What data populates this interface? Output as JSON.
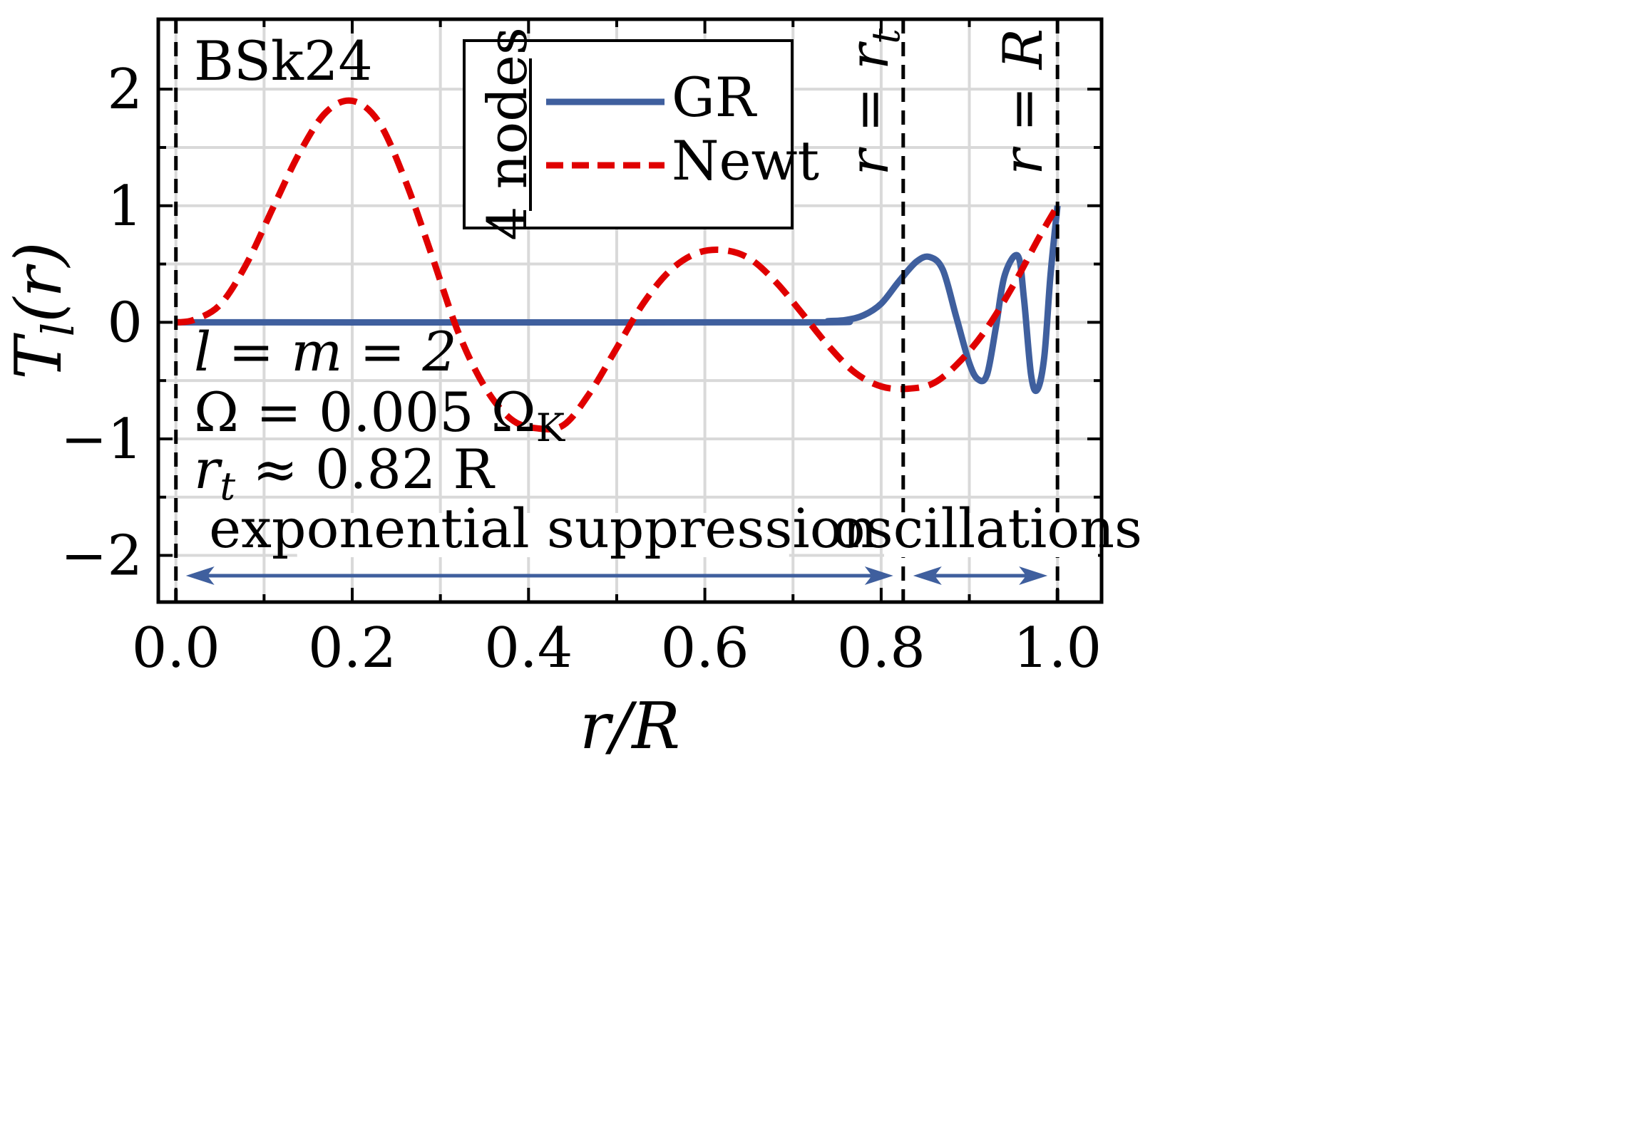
{
  "chart_data": {
    "type": "line",
    "xlabel": "r/R",
    "ylabel": "T_l(r)",
    "xlim": [
      -0.02,
      1.05
    ],
    "ylim": [
      -2.4,
      2.6
    ],
    "xticks": [
      {
        "value": 0.0,
        "label": "0.0"
      },
      {
        "value": 0.2,
        "label": "0.2"
      },
      {
        "value": 0.4,
        "label": "0.4"
      },
      {
        "value": 0.6,
        "label": "0.6"
      },
      {
        "value": 0.8,
        "label": "0.8"
      },
      {
        "value": 1.0,
        "label": "1.0"
      }
    ],
    "yticks": [
      {
        "value": -2,
        "label": "−2"
      },
      {
        "value": -1,
        "label": "−1"
      },
      {
        "value": 0,
        "label": "0"
      },
      {
        "value": 1,
        "label": "1"
      },
      {
        "value": 2,
        "label": "2"
      }
    ],
    "grid": true,
    "series": [
      {
        "name": "GR",
        "style": "solid",
        "color": "#3f5f9e",
        "x": [
          0,
          0.7,
          0.74,
          0.76,
          0.78,
          0.8,
          0.82,
          0.84,
          0.855,
          0.87,
          0.885,
          0.9,
          0.91,
          0.92,
          0.93,
          0.94,
          0.955,
          0.962,
          0.97,
          0.977,
          0.985,
          0.992,
          1.0
        ],
        "y": [
          0,
          0,
          0.01,
          0.02,
          0.06,
          0.16,
          0.35,
          0.52,
          0.56,
          0.45,
          0.05,
          -0.35,
          -0.49,
          -0.45,
          -0.05,
          0.4,
          0.57,
          0.2,
          -0.45,
          -0.58,
          -0.3,
          0.4,
          1.0
        ]
      },
      {
        "name": "Newt",
        "style": "dashed",
        "color": "#e00000",
        "x": [
          0,
          0.02,
          0.05,
          0.08,
          0.11,
          0.14,
          0.17,
          0.2,
          0.23,
          0.26,
          0.29,
          0.32,
          0.35,
          0.38,
          0.41,
          0.44,
          0.47,
          0.5,
          0.53,
          0.56,
          0.59,
          0.62,
          0.65,
          0.68,
          0.71,
          0.74,
          0.77,
          0.8,
          0.83,
          0.86,
          0.89,
          0.92,
          0.95,
          0.98,
          1.0
        ],
        "y": [
          0,
          0.02,
          0.15,
          0.5,
          0.98,
          1.45,
          1.8,
          1.9,
          1.72,
          1.22,
          0.58,
          -0.08,
          -0.55,
          -0.83,
          -0.91,
          -0.88,
          -0.6,
          -0.22,
          0.16,
          0.44,
          0.59,
          0.62,
          0.55,
          0.35,
          0.08,
          -0.2,
          -0.43,
          -0.55,
          -0.57,
          -0.52,
          -0.33,
          -0.05,
          0.32,
          0.74,
          1.0
        ]
      }
    ],
    "vlines": [
      {
        "x": 0.0,
        "style": "dashed"
      },
      {
        "x": 0.825,
        "style": "dashed",
        "label": "r = r_t"
      },
      {
        "x": 1.0,
        "style": "dashed",
        "label": "r = R"
      }
    ],
    "legend": {
      "title": "4 nodes",
      "position": "top-center",
      "entries": [
        "GR",
        "Newt"
      ]
    },
    "annotations": {
      "model": "BSk24",
      "lm": "l = m = 2",
      "omega": "Ω = 0.005 Ω",
      "omega_sub": "K",
      "rt_main": "r",
      "rt_sub": "t",
      "rt_rest": " ≈ 0.82 R",
      "suppression": "exponential suppression",
      "oscillations": "oscillations",
      "vline_rt_label": "r = r",
      "vline_rt_sub": "t",
      "vline_R_label": "r = R"
    },
    "regions": [
      {
        "label": "exponential suppression",
        "x_from": 0.0,
        "x_to": 0.825
      },
      {
        "label": "oscillations",
        "x_from": 0.825,
        "x_to": 1.0
      }
    ]
  },
  "colors": {
    "gr": "#3f5f9e",
    "newt": "#e00000",
    "grid": "#d9d9d9",
    "arrow": "#3f5f9e"
  }
}
